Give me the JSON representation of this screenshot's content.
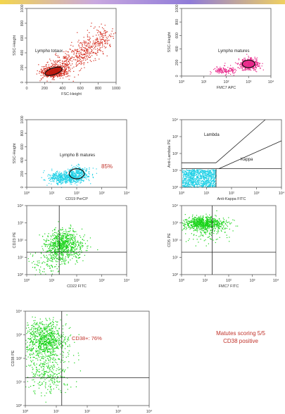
{
  "note": {
    "line1": "Matutes scoring 5/5",
    "line2": "CD38 positive"
  },
  "colors": {
    "red": "#d42a1c",
    "magenta": "#e8288a",
    "cyan": "#1fd0e6",
    "green": "#19d419",
    "text_red": "#c0332b"
  },
  "chart_data": [
    {
      "type": "scatter",
      "xlabel": "FSC-Height",
      "ylabel": "SSC-Height",
      "xticks": [
        "0",
        "200",
        "400",
        "600",
        "800",
        "1000"
      ],
      "yticks": [
        "0",
        "200",
        "400",
        "600",
        "800",
        "1000"
      ],
      "xlim": [
        0,
        1000
      ],
      "ylim": [
        0,
        1000
      ],
      "gate": {
        "label": "Lympho totaux",
        "cx": 300,
        "cy": 150,
        "rx": 100,
        "ry": 45
      },
      "series": [
        {
          "color": "#d42a1c"
        }
      ]
    },
    {
      "type": "scatter",
      "xlabel": "FMC7 APC",
      "ylabel": "SSC-Height",
      "xticks": [
        "10^0",
        "10^1",
        "10^2",
        "10^3",
        "10^4"
      ],
      "yticks": [
        "0",
        "200",
        "400",
        "600",
        "800",
        "1000"
      ],
      "xscale": "log",
      "xlim": [
        1,
        10000
      ],
      "ylim": [
        0,
        1000
      ],
      "gate": {
        "label": "Lympho matures",
        "cx": 1000,
        "cy": 180,
        "rx": 0.28,
        "ry": 55
      },
      "series": [
        {
          "color": "#e8288a"
        }
      ]
    },
    {
      "type": "scatter",
      "xlabel": "CD19 PerCP",
      "ylabel": "SSC-Height",
      "xticks": [
        "10^0",
        "10^1",
        "10^2",
        "10^3",
        "10^4"
      ],
      "yticks": [
        "0",
        "200",
        "400",
        "600",
        "800",
        "1000"
      ],
      "xscale": "log",
      "xlim": [
        1,
        10000
      ],
      "ylim": [
        0,
        1000
      ],
      "gate": {
        "label": "Lympho B matures",
        "cx": 100,
        "cy": 200,
        "rx": 0.3,
        "ry": 75
      },
      "annotation": "85%",
      "series": [
        {
          "color": "#1fd0e6"
        }
      ]
    },
    {
      "type": "scatter",
      "xlabel": "Anti-Kappa FITC",
      "ylabel": "Anti-Lambda PE",
      "xticks": [
        "10^0",
        "10^1",
        "10^2",
        "10^3",
        "10^4"
      ],
      "yticks": [
        "10^0",
        "10^1",
        "10^2",
        "10^3",
        "10^4"
      ],
      "xscale": "log",
      "yscale": "log",
      "xlim": [
        1,
        10000
      ],
      "ylim": [
        1,
        10000
      ],
      "regions": [
        "Lambda",
        "Kappa"
      ],
      "series": [
        {
          "color": "#1fd0e6"
        }
      ]
    },
    {
      "type": "scatter",
      "xlabel": "CD22 FITC",
      "ylabel": "CD23 PE",
      "xticks": [
        "10^0",
        "10^1",
        "10^2",
        "10^3",
        "10^4"
      ],
      "yticks": [
        "10^0",
        "10^1",
        "10^2",
        "10^3",
        "10^4"
      ],
      "xscale": "log",
      "yscale": "log",
      "xlim": [
        1,
        10000
      ],
      "ylim": [
        1,
        10000
      ],
      "quadrant": [
        20,
        20
      ],
      "series": [
        {
          "color": "#19d419"
        }
      ]
    },
    {
      "type": "scatter",
      "xlabel": "FMC7 FITC",
      "ylabel": "CD5 PE",
      "xticks": [
        "10^0",
        "10^1",
        "10^2",
        "10^3",
        "10^4"
      ],
      "yticks": [
        "10^0",
        "10^1",
        "10^2",
        "10^3",
        "10^4"
      ],
      "xscale": "log",
      "yscale": "log",
      "xlim": [
        1,
        10000
      ],
      "ylim": [
        1,
        10000
      ],
      "quadrant": [
        20,
        20
      ],
      "series": [
        {
          "color": "#19d419"
        }
      ]
    },
    {
      "type": "scatter",
      "xlabel": "CD10 FITC",
      "ylabel": "CD38 PE",
      "xticks": [
        "10^0",
        "10^1",
        "10^2",
        "10^3",
        "10^4"
      ],
      "yticks": [
        "10^0",
        "10^1",
        "10^2",
        "10^3",
        "10^4"
      ],
      "xscale": "log",
      "yscale": "log",
      "xlim": [
        1,
        10000
      ],
      "ylim": [
        1,
        10000
      ],
      "quadrant": [
        15,
        15
      ],
      "annotation": "CD38+: 76%",
      "series": [
        {
          "color": "#19d419"
        }
      ]
    }
  ]
}
